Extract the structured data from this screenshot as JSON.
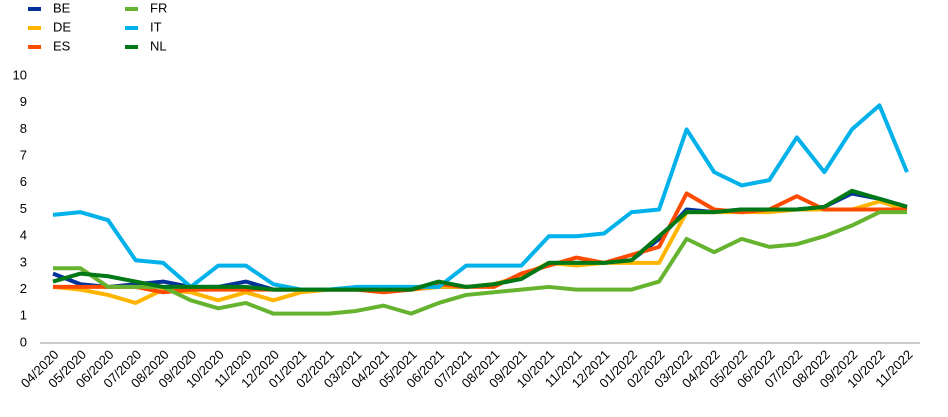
{
  "chart_data": {
    "type": "line",
    "categories": [
      "04/2020",
      "05/2020",
      "06/2020",
      "07/2020",
      "08/2020",
      "09/2020",
      "10/2020",
      "11/2020",
      "12/2020",
      "01/2021",
      "02/2021",
      "03/2021",
      "04/2021",
      "05/2021",
      "06/2021",
      "07/2021",
      "08/2021",
      "09/2021",
      "10/2021",
      "11/2021",
      "12/2021",
      "01/2022",
      "02/2022",
      "03/2022",
      "04/2022",
      "05/2022",
      "06/2022",
      "07/2022",
      "08/2022",
      "09/2022",
      "10/2022",
      "11/2022"
    ],
    "series": [
      {
        "name": "BE",
        "color": "#003299",
        "values": [
          2.6,
          2.2,
          2.1,
          2.2,
          2.3,
          2.1,
          2.1,
          2.3,
          2.0,
          2.0,
          2.0,
          2.0,
          2.0,
          2.0,
          2.1,
          2.1,
          2.2,
          2.4,
          3.0,
          3.0,
          3.0,
          3.1,
          3.9,
          5.0,
          4.9,
          5.0,
          5.0,
          5.0,
          5.1,
          5.6,
          5.4,
          5.1
        ]
      },
      {
        "name": "DE",
        "color": "#ffb400",
        "values": [
          2.1,
          2.0,
          1.8,
          1.5,
          2.0,
          1.9,
          1.6,
          1.9,
          1.6,
          1.9,
          2.0,
          2.0,
          2.0,
          2.0,
          2.1,
          2.1,
          2.2,
          2.5,
          3.0,
          2.9,
          3.0,
          3.0,
          3.0,
          4.9,
          4.9,
          4.9,
          4.9,
          5.0,
          5.0,
          5.0,
          5.3,
          5.0
        ]
      },
      {
        "name": "ES",
        "color": "#ff4b00",
        "values": [
          2.1,
          2.1,
          2.1,
          2.1,
          1.9,
          2.0,
          2.0,
          2.0,
          2.0,
          2.0,
          2.0,
          2.0,
          1.9,
          2.0,
          2.2,
          2.1,
          2.1,
          2.6,
          2.9,
          3.2,
          3.0,
          3.3,
          3.6,
          5.6,
          5.0,
          4.9,
          5.0,
          5.5,
          5.0,
          5.0,
          5.0,
          5.0
        ]
      },
      {
        "name": "FR",
        "color": "#65b32e",
        "values": [
          2.8,
          2.8,
          2.1,
          2.1,
          2.1,
          1.6,
          1.3,
          1.5,
          1.1,
          1.1,
          1.1,
          1.2,
          1.4,
          1.1,
          1.5,
          1.8,
          1.9,
          2.0,
          2.1,
          2.0,
          2.0,
          2.0,
          2.3,
          3.9,
          3.4,
          3.9,
          3.6,
          3.7,
          4.0,
          4.4,
          4.9,
          4.9
        ]
      },
      {
        "name": "IT",
        "color": "#00b1ea",
        "values": [
          4.8,
          4.9,
          4.6,
          3.1,
          3.0,
          2.1,
          2.9,
          2.9,
          2.2,
          2.0,
          2.0,
          2.1,
          2.1,
          2.1,
          2.1,
          2.9,
          2.9,
          2.9,
          4.0,
          4.0,
          4.1,
          4.9,
          5.0,
          8.0,
          6.4,
          5.9,
          6.1,
          7.7,
          6.4,
          8.0,
          8.9,
          6.4
        ]
      },
      {
        "name": "NL",
        "color": "#007816",
        "values": [
          2.3,
          2.6,
          2.5,
          2.3,
          2.1,
          2.1,
          2.1,
          2.1,
          2.0,
          2.0,
          2.0,
          2.0,
          2.0,
          2.0,
          2.3,
          2.1,
          2.2,
          2.4,
          3.0,
          3.0,
          3.0,
          3.1,
          4.0,
          4.9,
          4.9,
          5.0,
          5.0,
          5.0,
          5.1,
          5.7,
          5.4,
          5.1
        ]
      }
    ],
    "ylim": [
      0,
      10
    ],
    "yticks": [
      0,
      1,
      2,
      3,
      4,
      5,
      6,
      7,
      8,
      9,
      10
    ],
    "grid": false
  }
}
